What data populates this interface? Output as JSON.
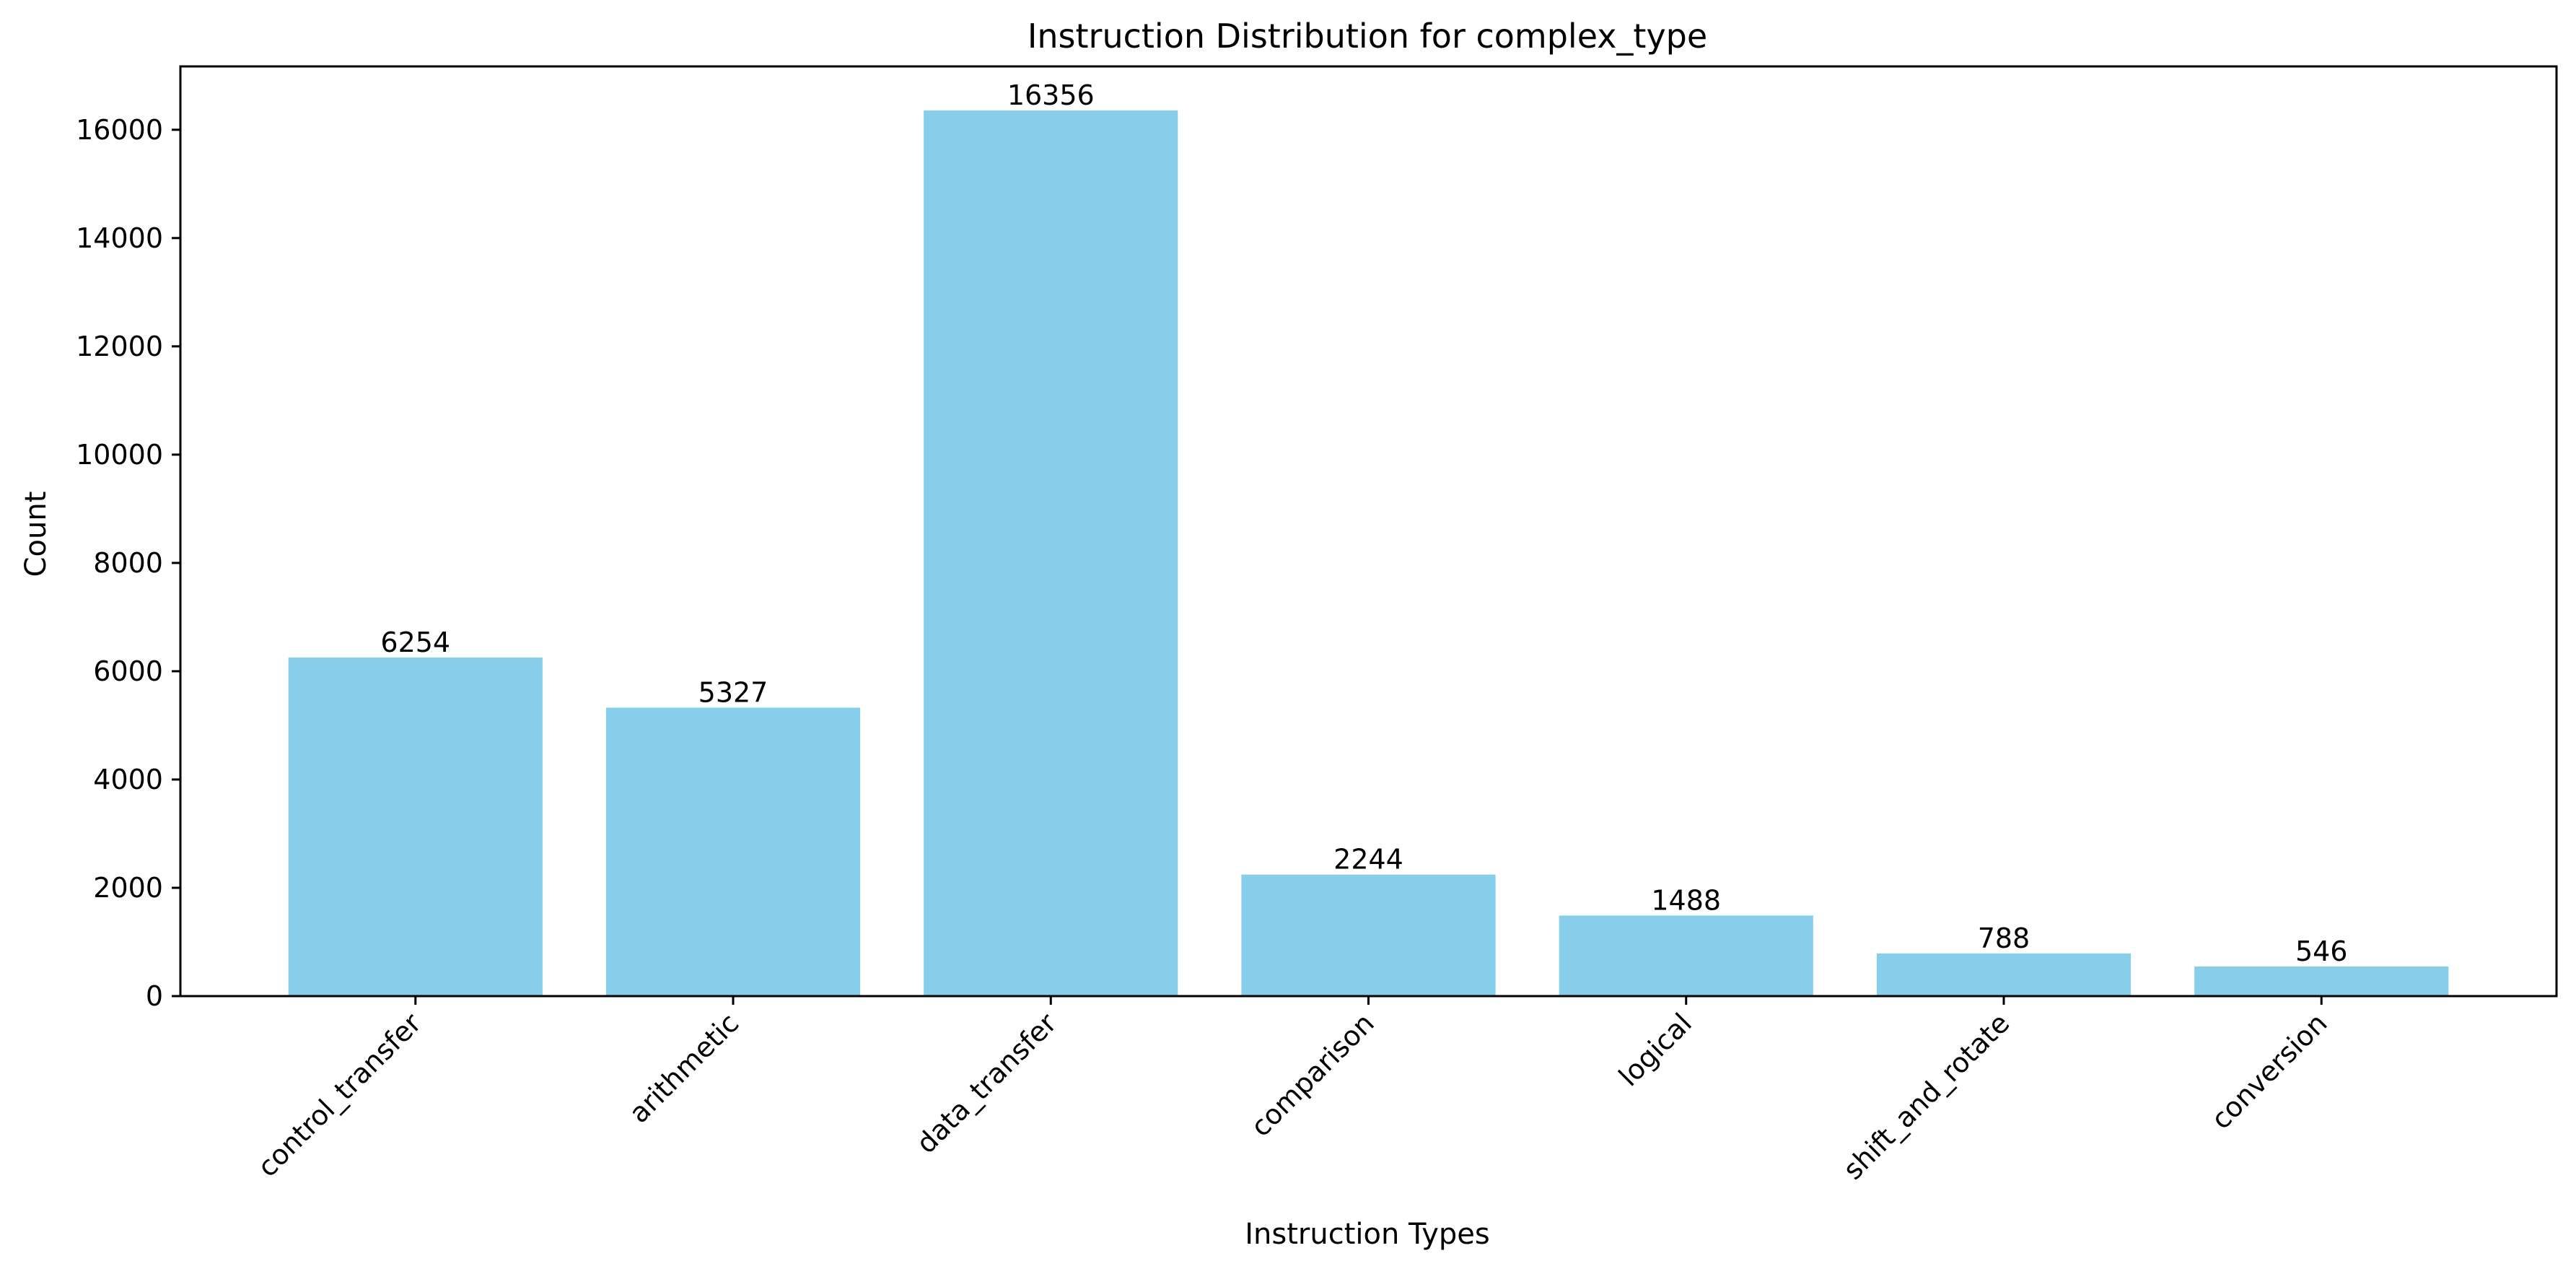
{
  "chart_data": {
    "type": "bar",
    "title": "Instruction Distribution for complex_type",
    "xlabel": "Instruction Types",
    "ylabel": "Count",
    "categories": [
      "control_transfer",
      "arithmetic",
      "data_transfer",
      "comparison",
      "logical",
      "shift_and_rotate",
      "conversion"
    ],
    "values": [
      6254,
      5327,
      16356,
      2244,
      1488,
      788,
      546
    ],
    "data_labels": [
      "6254",
      "5327",
      "16356",
      "2244",
      "1488",
      "788",
      "546"
    ],
    "ylim": [
      0,
      17170
    ],
    "yticks": [
      0,
      2000,
      4000,
      6000,
      8000,
      10000,
      12000,
      14000,
      16000
    ],
    "ytick_labels": [
      "0",
      "2000",
      "4000",
      "6000",
      "8000",
      "10000",
      "12000",
      "14000",
      "16000"
    ],
    "grid": false,
    "legend": "none",
    "bar_color": "#87CEEB"
  }
}
